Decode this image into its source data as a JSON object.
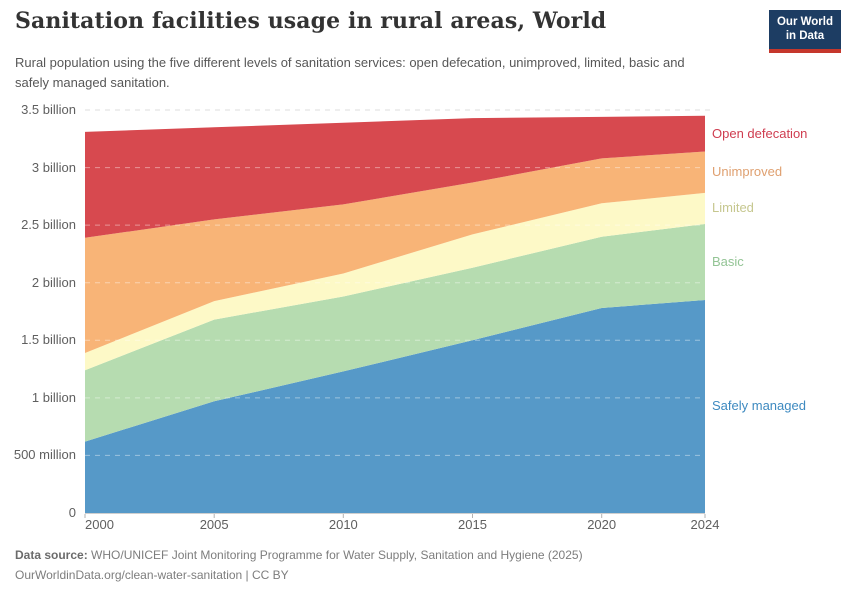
{
  "header": {
    "title": "Sanitation facilities usage in rural areas, World",
    "subtitle": "Rural population using the five different levels of sanitation services: open defecation, unimproved, limited, basic and safely managed sanitation.",
    "logo": {
      "line1": "Our World",
      "line2": "in Data",
      "bg_color": "#1d3d63",
      "stripe_color": "#c5372c"
    }
  },
  "chart_data": {
    "type": "area",
    "stacked": true,
    "title": "Sanitation facilities usage in rural areas, World",
    "x": [
      2000,
      2005,
      2010,
      2015,
      2020,
      2024
    ],
    "series": [
      {
        "name": "Safely managed",
        "color": "#5699c8",
        "label_color": "#3e8ac0",
        "values": [
          0.62,
          0.97,
          1.23,
          1.5,
          1.78,
          1.85
        ]
      },
      {
        "name": "Basic",
        "color": "#b6dcb0",
        "label_color": "#93c495",
        "values": [
          0.62,
          0.71,
          0.65,
          0.63,
          0.62,
          0.66
        ]
      },
      {
        "name": "Limited",
        "color": "#fdf9c7",
        "label_color": "#c6c78f",
        "values": [
          0.15,
          0.16,
          0.2,
          0.29,
          0.29,
          0.27
        ]
      },
      {
        "name": "Unimproved",
        "color": "#f8b477",
        "label_color": "#dfa070",
        "values": [
          1.0,
          0.71,
          0.6,
          0.45,
          0.39,
          0.36
        ]
      },
      {
        "name": "Open defecation",
        "color": "#d7494f",
        "label_color": "#cf3d50",
        "values": [
          0.92,
          0.8,
          0.71,
          0.56,
          0.36,
          0.31
        ]
      }
    ],
    "unit": "people",
    "ylim": [
      0,
      3.5
    ],
    "yticks": [
      {
        "v": 0,
        "label": "0"
      },
      {
        "v": 0.5,
        "label": "500 million"
      },
      {
        "v": 1,
        "label": "1 billion"
      },
      {
        "v": 1.5,
        "label": "1.5 billion"
      },
      {
        "v": 2,
        "label": "2 billion"
      },
      {
        "v": 2.5,
        "label": "2.5 billion"
      },
      {
        "v": 3,
        "label": "3 billion"
      },
      {
        "v": 3.5,
        "label": "3.5 billion"
      }
    ],
    "xticks": [
      2000,
      2005,
      2010,
      2015,
      2020,
      2024
    ],
    "legend_position": "right",
    "grid": "dashed"
  },
  "footer": {
    "source_label": "Data source:",
    "source_text": " WHO/UNICEF Joint Monitoring Programme for Water Supply, Sanitation and Hygiene (2025)",
    "link_line": "OurWorldinData.org/clean-water-sanitation | CC BY"
  }
}
